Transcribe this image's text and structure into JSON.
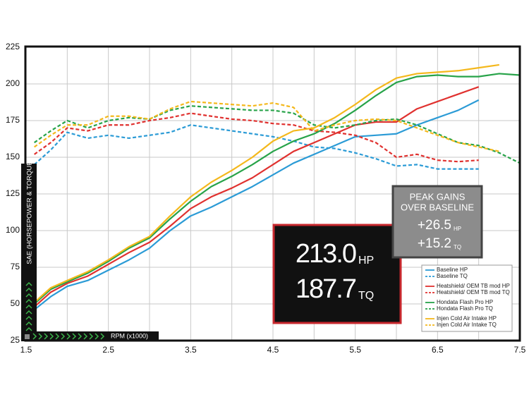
{
  "chart_data": {
    "type": "line",
    "y_label": "SAE (HORSEPOWER & TORQUE)",
    "x_label": "RPM (x1000)",
    "xlim": [
      1.5,
      7.5
    ],
    "xticks": [
      1.5,
      2.5,
      3.5,
      4.5,
      5.5,
      6.5,
      7.5
    ],
    "ylim": [
      25,
      225
    ],
    "yticks": [
      25,
      50,
      75,
      100,
      125,
      150,
      175,
      200,
      225
    ],
    "grid": true,
    "minor_x_grid": true,
    "x": [
      1.6,
      1.8,
      2.0,
      2.25,
      2.5,
      2.75,
      3.0,
      3.25,
      3.5,
      3.75,
      4.0,
      4.25,
      4.5,
      4.75,
      5.0,
      5.25,
      5.5,
      5.75,
      6.0,
      6.25,
      6.5,
      6.75,
      7.0,
      7.25,
      7.5
    ],
    "series": [
      {
        "name": "Baseline HP",
        "color": "#2b9bd6",
        "dash": false,
        "values": [
          46,
          55,
          62,
          66,
          73,
          80,
          88,
          100,
          110,
          116,
          123,
          130,
          138,
          146,
          152,
          158,
          164,
          165,
          166,
          172,
          177,
          182,
          189,
          null,
          null
        ]
      },
      {
        "name": "Baseline TQ",
        "color": "#2b9bd6",
        "dash": true,
        "values": [
          145,
          155,
          167,
          163,
          165,
          163,
          165,
          167,
          172,
          170,
          168,
          166,
          164,
          161,
          157,
          156,
          153,
          149,
          144,
          145,
          142,
          142,
          142,
          null,
          null
        ]
      },
      {
        "name": "Heatshield/ OEM TB mod HP",
        "color": "#e0312f",
        "dash": false,
        "values": [
          48,
          58,
          64,
          69,
          77,
          85,
          92,
          103,
          115,
          123,
          129,
          136,
          145,
          154,
          160,
          166,
          172,
          174,
          174,
          183,
          188,
          193,
          198,
          null,
          null
        ]
      },
      {
        "name": "Heatshield/ OEM TB mod TQ",
        "color": "#e0312f",
        "dash": true,
        "values": [
          152,
          160,
          170,
          168,
          172,
          172,
          175,
          177,
          180,
          178,
          176,
          175,
          173,
          172,
          168,
          167,
          165,
          160,
          150,
          152,
          148,
          147,
          148,
          null,
          null
        ]
      },
      {
        "name": "Hondata Flash Pro HP",
        "color": "#27a349",
        "dash": false,
        "values": [
          50,
          60,
          65,
          71,
          79,
          88,
          95,
          108,
          120,
          130,
          137,
          145,
          154,
          161,
          166,
          173,
          182,
          192,
          201,
          205,
          206,
          205,
          205,
          207,
          206
        ]
      },
      {
        "name": "Hondata Flash Pro TQ",
        "color": "#27a349",
        "dash": true,
        "values": [
          160,
          168,
          175,
          170,
          175,
          177,
          176,
          182,
          185,
          184,
          183,
          182,
          182,
          180,
          172,
          170,
          172,
          175,
          176,
          172,
          166,
          160,
          158,
          153,
          146
        ]
      },
      {
        "name": "Injen Cold Air Intake HP",
        "color": "#f4b81c",
        "dash": false,
        "values": [
          51,
          61,
          66,
          72,
          80,
          89,
          96,
          110,
          123,
          133,
          141,
          150,
          161,
          168,
          170,
          177,
          186,
          196,
          204,
          207,
          208,
          209,
          211,
          213,
          null
        ]
      },
      {
        "name": "Injen Cold Air Intake TQ",
        "color": "#f4b81c",
        "dash": true,
        "values": [
          157,
          165,
          172,
          172,
          178,
          178,
          176,
          183,
          188,
          187,
          186,
          185,
          187,
          184,
          168,
          172,
          175,
          176,
          175,
          170,
          165,
          160,
          157,
          154,
          null
        ]
      }
    ],
    "peak_box": {
      "hp": "213.0",
      "hp_unit": "HP",
      "tq": "187.7",
      "tq_unit": "TQ"
    },
    "gains_box": {
      "title_1": "PEAK GAINS",
      "title_2": "OVER BASELINE",
      "hp": "+26.5",
      "hp_unit": "HP",
      "tq": "+15.2",
      "tq_unit": "TQ"
    }
  }
}
